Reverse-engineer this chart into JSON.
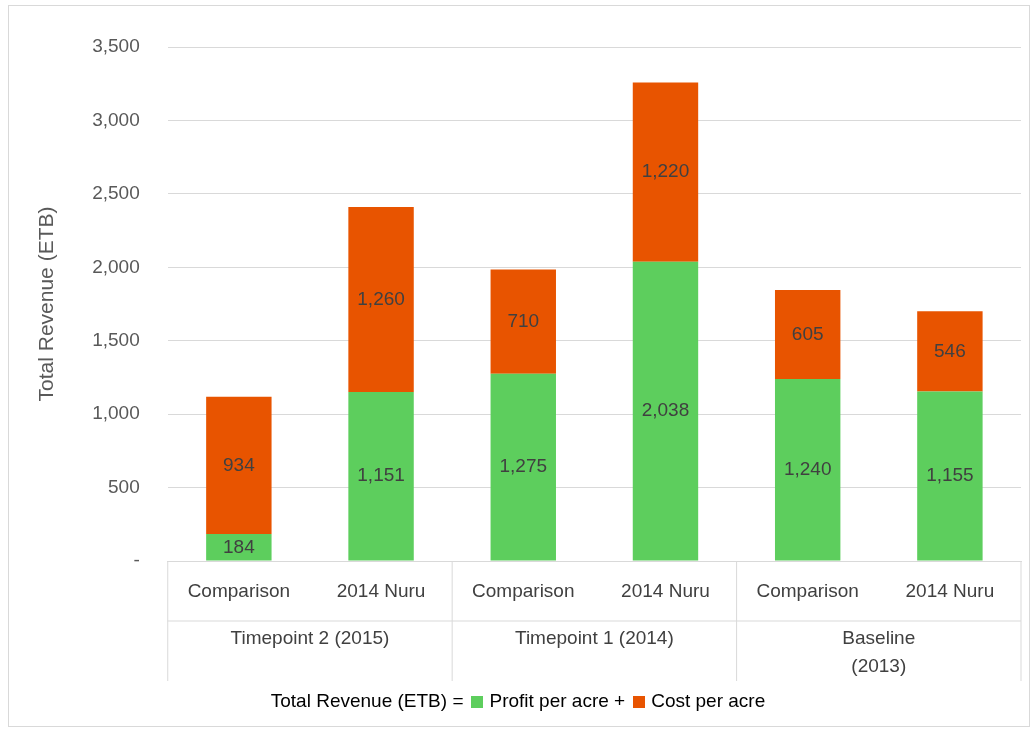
{
  "chart_data": {
    "type": "bar",
    "stacked": true,
    "ylabel": "Total Revenue (ETB)",
    "legend_title": "Total Revenue (ETB) =",
    "categories": [
      "Comparison",
      "2014 Nuru",
      "Comparison",
      "2014 Nuru",
      "Comparison",
      "2014 Nuru"
    ],
    "series": [
      {
        "name": "Profit per acre",
        "color": "#5dce5d",
        "values": [
          184,
          1151,
          1275,
          2038,
          1240,
          1155
        ],
        "value_labels": [
          "184",
          "1,151",
          "1,275",
          "2,038",
          "1,240",
          "1,155"
        ]
      },
      {
        "name": "Cost per acre",
        "color": "#e85400",
        "values": [
          934,
          1260,
          710,
          1220,
          605,
          546
        ],
        "value_labels": [
          "934",
          "1,260",
          "710",
          "1,220",
          "605",
          "546"
        ]
      }
    ],
    "ylim": [
      0,
      3500
    ],
    "yticks": [
      {
        "value": 0,
        "label": "-"
      },
      500,
      {
        "value": 1000,
        "label": "1,000"
      },
      {
        "value": 1500,
        "label": "1,500"
      },
      {
        "value": 2000,
        "label": "2,000"
      },
      {
        "value": 2500,
        "label": "2,500"
      },
      {
        "value": 3000,
        "label": "3,000"
      },
      {
        "value": 3500,
        "label": "3,500"
      }
    ],
    "grid": "y",
    "legend": "bottom",
    "annotations": [
      "Timepoint 2 (2015)",
      "Timepoint 1 (2014)",
      "Baseline\n(2013)",
      "+"
    ]
  }
}
